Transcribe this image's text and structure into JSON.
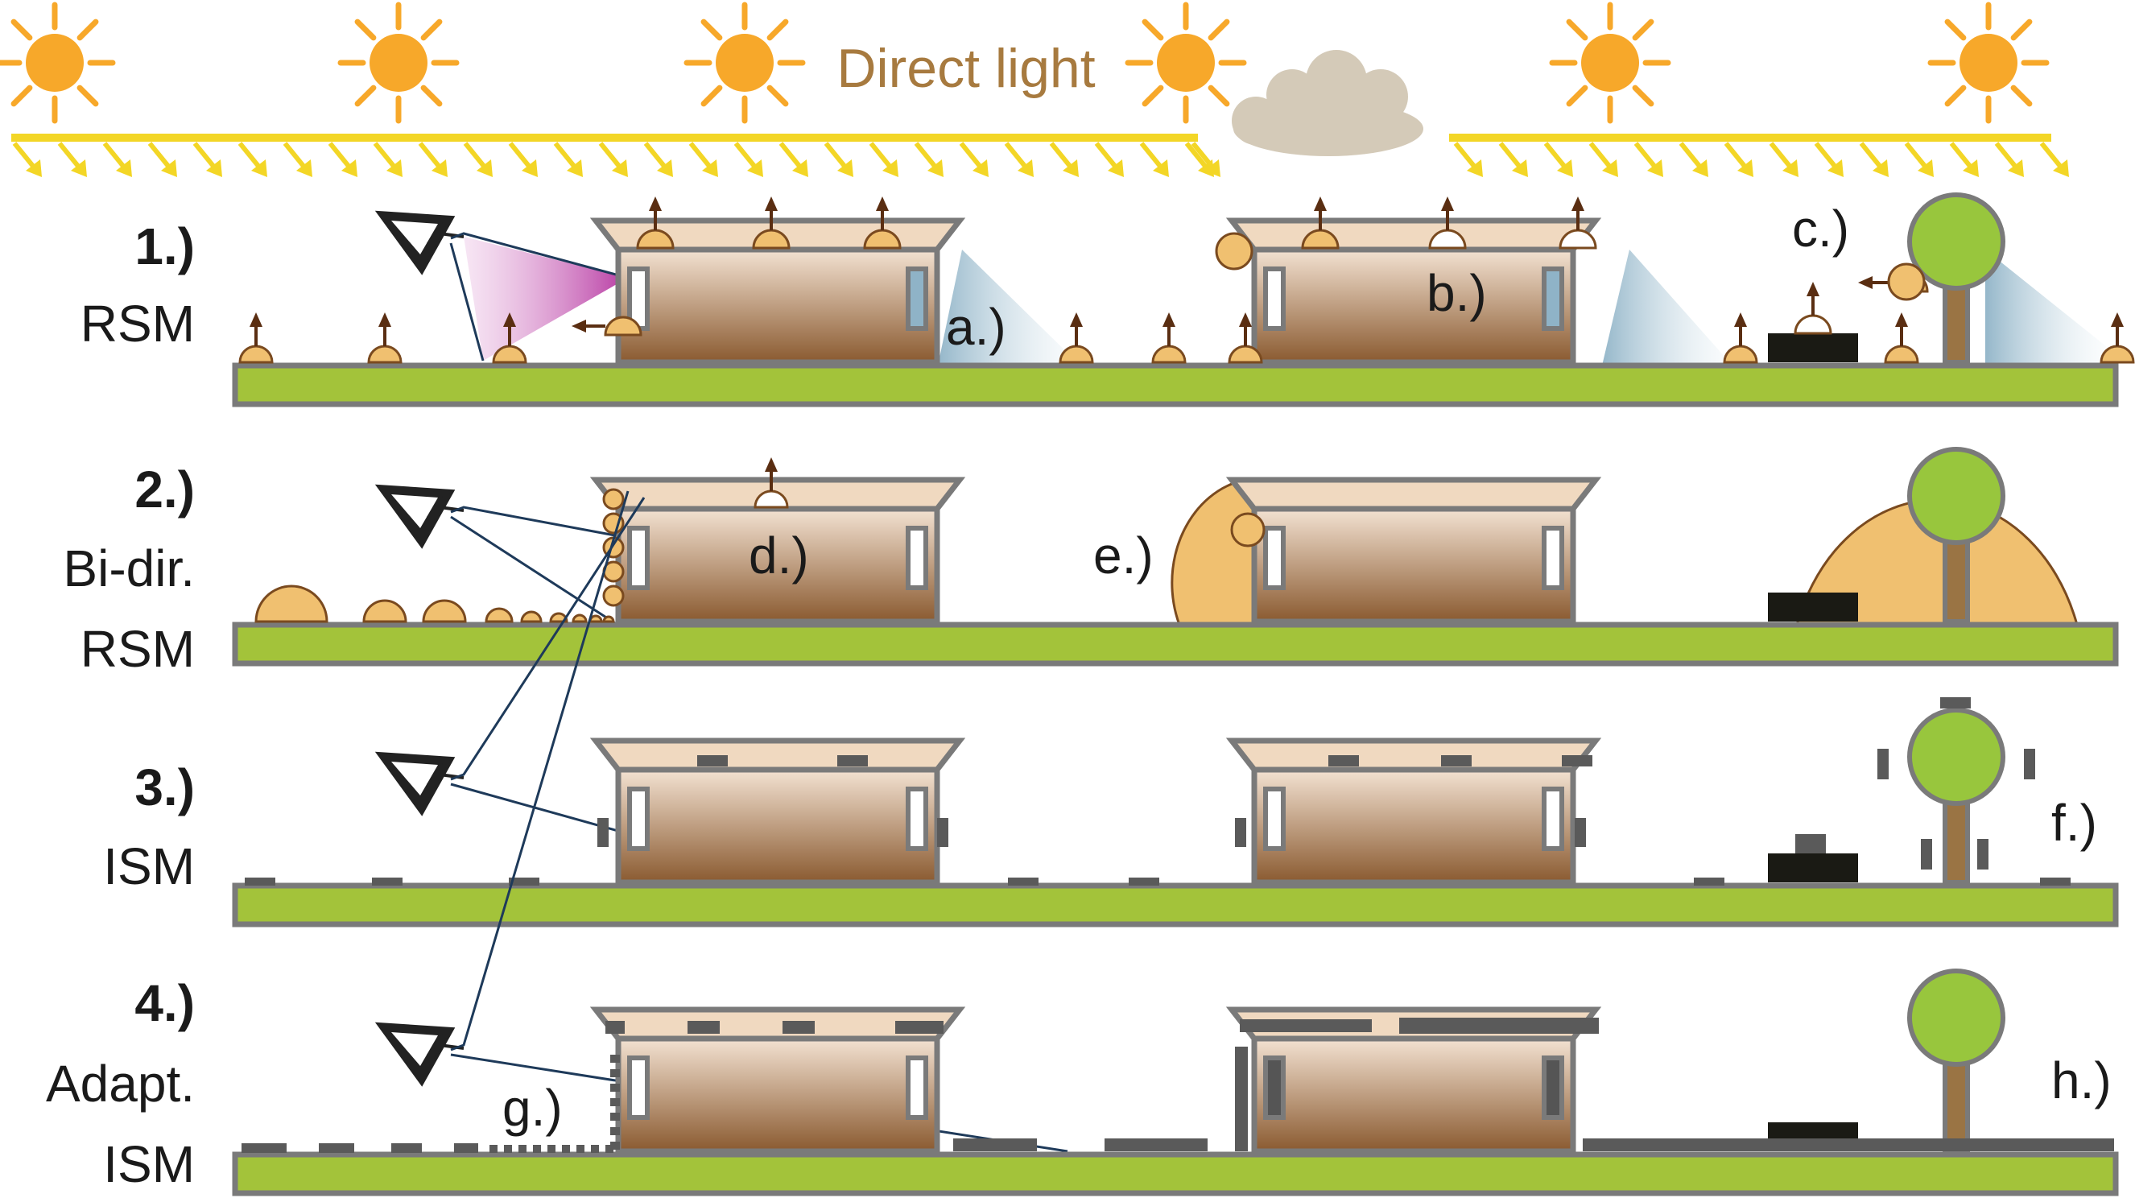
{
  "header": {
    "direct_light": "Direct light"
  },
  "rows": [
    {
      "number": "1.)",
      "name_lines": [
        "RSM"
      ]
    },
    {
      "number": "2.)",
      "name_lines": [
        "Bi-dir.",
        "RSM"
      ]
    },
    {
      "number": "3.)",
      "name_lines": [
        "ISM"
      ]
    },
    {
      "number": "4.)",
      "name_lines": [
        "Adapt.",
        "ISM"
      ]
    }
  ],
  "annotations": {
    "a": "a.)",
    "b": "b.)",
    "c": "c.)",
    "d": "d.)",
    "e": "e.)",
    "f": "f.)",
    "g": "g.)",
    "h": "h.)"
  },
  "colors": {
    "sun": "#f7a82a",
    "light_ray": "#f3d626",
    "cloud": "#d4cab8",
    "ground": "#a3c33a",
    "outline": "#7a7a7a",
    "roof": "#f0d9c0",
    "house_top": "#f3e2d2",
    "house_bottom": "#8a5a30",
    "vpl": "#f0c070",
    "vpl_stroke": "#7a4a1f",
    "arrow": "#5a2e12",
    "tree_crown": "#98c63d",
    "tree_trunk": "#9a7444",
    "black_box": "#1a1a14",
    "shadow_patch": "#5a5a5a",
    "view_beam": "#c040b0",
    "view_line": "#1e3a5a"
  }
}
